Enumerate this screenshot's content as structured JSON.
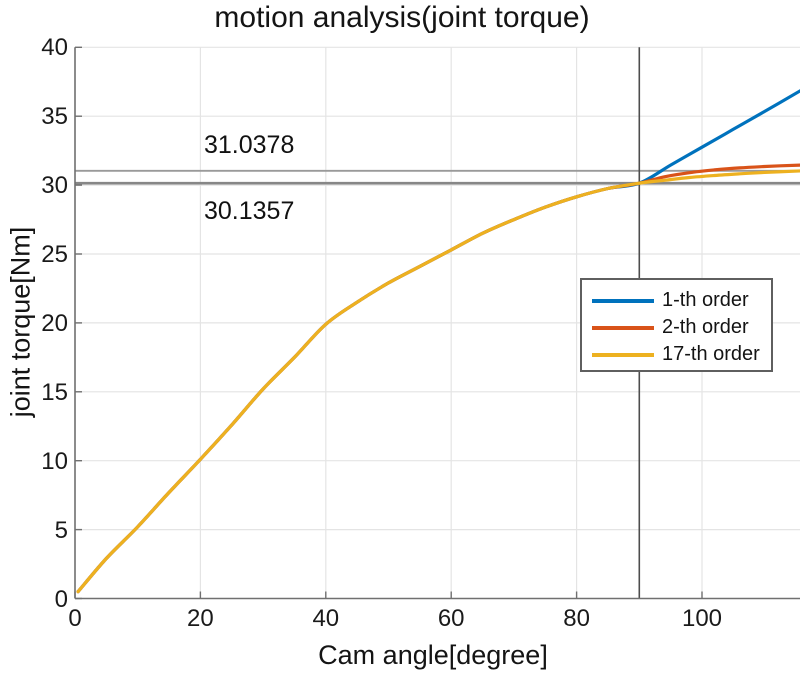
{
  "figure": {
    "title": "motion analysis(joint torque)"
  },
  "chart_data": {
    "type": "line",
    "title": "motion analysis(joint torque)",
    "xlabel": "Cam angle[degree]",
    "ylabel": "joint torque[Nm]",
    "xlim": [
      0,
      115.7
    ],
    "ylim": [
      0,
      40
    ],
    "xticks": [
      0,
      20,
      40,
      60,
      80,
      100
    ],
    "yticks": [
      0,
      5,
      10,
      15,
      20,
      25,
      30,
      35,
      40
    ],
    "grid": true,
    "background": "#ffffff",
    "grid_color": "#e4e4e4",
    "axis_color": "#707070",
    "legend_position": "right-middle",
    "series": [
      {
        "name": "1-th order",
        "color": "#0072BD",
        "x": [
          0.5,
          5,
          10,
          15,
          20,
          25,
          30,
          35,
          40,
          45,
          50,
          55,
          60,
          65,
          70,
          75,
          80,
          85,
          90,
          95,
          100,
          105,
          110,
          115.7
        ],
        "y": [
          0.5,
          2.9,
          5.2,
          7.7,
          10.1,
          12.6,
          15.2,
          17.5,
          19.9,
          21.5,
          22.9,
          24.1,
          25.3,
          26.5,
          27.5,
          28.4,
          29.15,
          29.75,
          30.1357,
          31.45,
          32.75,
          34.05,
          35.35,
          36.85
        ]
      },
      {
        "name": "2-th order",
        "color": "#D95319",
        "x": [
          0.5,
          5,
          10,
          15,
          20,
          25,
          30,
          35,
          40,
          45,
          50,
          55,
          60,
          65,
          70,
          75,
          80,
          85,
          90,
          94,
          98,
          102,
          106,
          110,
          115.7
        ],
        "y": [
          0.5,
          2.9,
          5.2,
          7.7,
          10.1,
          12.6,
          15.2,
          17.5,
          19.9,
          21.5,
          22.9,
          24.1,
          25.3,
          26.5,
          27.5,
          28.4,
          29.15,
          29.75,
          30.1357,
          30.6,
          30.9,
          31.1,
          31.25,
          31.35,
          31.45
        ]
      },
      {
        "name": "17-th order",
        "color": "#EDB120",
        "x": [
          0.5,
          5,
          10,
          15,
          20,
          25,
          30,
          35,
          40,
          45,
          50,
          55,
          60,
          65,
          70,
          75,
          80,
          85,
          90,
          94,
          98,
          102,
          106,
          110,
          115.7
        ],
        "y": [
          0.5,
          2.9,
          5.2,
          7.7,
          10.1,
          12.6,
          15.2,
          17.5,
          19.9,
          21.5,
          22.9,
          24.1,
          25.3,
          26.5,
          27.5,
          28.4,
          29.15,
          29.75,
          30.1357,
          30.35,
          30.55,
          30.7,
          30.82,
          30.92,
          31.03
        ]
      }
    ],
    "reference_lines": {
      "horizontal": [
        {
          "value": 31.0378,
          "label": "31.0378",
          "color": "#9a9a9a"
        },
        {
          "value": 30.1357,
          "label": "30.1357",
          "color": "#878787"
        }
      ],
      "vertical": [
        {
          "value": 90,
          "color": "#4d4d4d"
        }
      ]
    }
  }
}
